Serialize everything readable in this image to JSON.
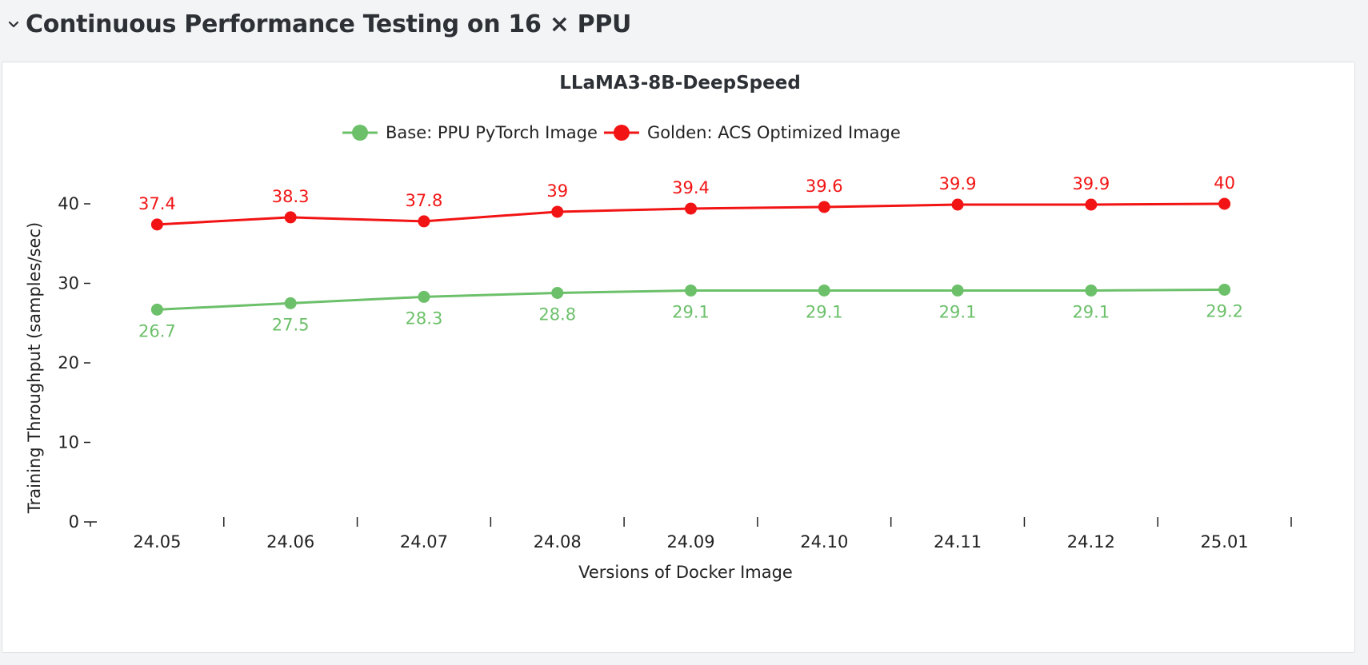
{
  "section": {
    "title": "Continuous Performance Testing on 16 × PPU"
  },
  "colors": {
    "base": "#6cc06a",
    "golden": "#f21414"
  },
  "chart_data": {
    "type": "line",
    "title": "LLaMA3-8B-DeepSpeed",
    "xlabel": "Versions of Docker Image",
    "ylabel": "Training Throughput (samples/sec)",
    "categories": [
      "24.05",
      "24.06",
      "24.07",
      "24.08",
      "24.09",
      "24.10",
      "24.11",
      "24.12",
      "25.01"
    ],
    "ylim": [
      0,
      40
    ],
    "yticks": [
      0,
      10,
      20,
      30,
      40
    ],
    "grid": false,
    "legend_position": "top-center",
    "series": [
      {
        "name": "Base: PPU PyTorch Image",
        "color": "#6cc06a",
        "values": [
          26.7,
          27.5,
          28.3,
          28.8,
          29.1,
          29.1,
          29.1,
          29.1,
          29.2
        ],
        "labels": [
          "26.7",
          "27.5",
          "28.3",
          "28.8",
          "29.1",
          "29.1",
          "29.1",
          "29.1",
          "29.2"
        ],
        "label_position": "below"
      },
      {
        "name": "Golden: ACS Optimized Image",
        "color": "#f21414",
        "values": [
          37.4,
          38.3,
          37.8,
          39,
          39.4,
          39.6,
          39.9,
          39.9,
          40
        ],
        "labels": [
          "37.4",
          "38.3",
          "37.8",
          "39",
          "39.4",
          "39.6",
          "39.9",
          "39.9",
          "40"
        ],
        "label_position": "above"
      }
    ]
  }
}
